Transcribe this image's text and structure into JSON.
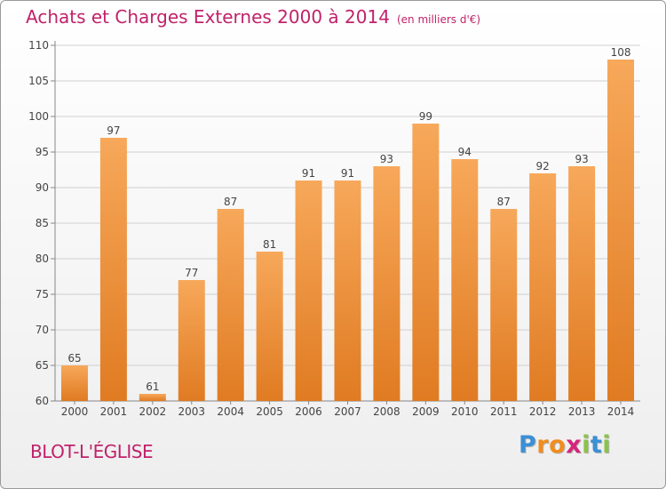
{
  "chart_data": {
    "type": "bar",
    "title": "Achats et Charges Externes 2000 à 2014",
    "subtitle": "(en milliers d'€)",
    "categories": [
      "2000",
      "2001",
      "2002",
      "2003",
      "2004",
      "2005",
      "2006",
      "2007",
      "2008",
      "2009",
      "2010",
      "2011",
      "2012",
      "2013",
      "2014"
    ],
    "values": [
      65,
      97,
      61,
      77,
      87,
      81,
      91,
      91,
      93,
      99,
      94,
      87,
      92,
      93,
      108
    ],
    "ylim": [
      60,
      110
    ],
    "yticks": [
      60,
      65,
      70,
      75,
      80,
      85,
      90,
      95,
      100,
      105,
      110
    ],
    "xlabel": "",
    "ylabel": "",
    "grid": true,
    "colors": {
      "bar_light": "#f7a85a",
      "bar_dark": "#e07b22",
      "title": "#c0226a"
    }
  },
  "footer": {
    "commune": "BLOT-L'ÉGLISE",
    "logo": {
      "letters": [
        "P",
        "r",
        "o",
        "x",
        "i",
        "t",
        "i"
      ],
      "colors": [
        "#3b8fd4",
        "#f28c1e",
        "#f28c1e",
        "#d6247a",
        "#8bc34a",
        "#3b8fd4",
        "#8bc34a"
      ]
    }
  }
}
